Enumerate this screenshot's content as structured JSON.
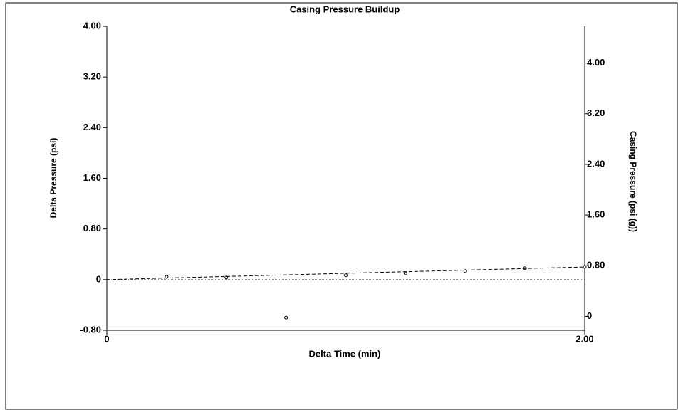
{
  "chart_data": {
    "type": "scatter",
    "title": "Casing Pressure Buildup",
    "x_label": "Delta Time (min)",
    "y_label": "Delta Pressure (psi)",
    "y2_label": "Casing Pressure (psi (g))",
    "xlim": [
      0,
      2
    ],
    "xticks": [
      0,
      {
        "value": 2,
        "label": "2.00"
      }
    ],
    "ylim": [
      -0.8,
      4
    ],
    "yticks": [
      {
        "value": 4,
        "label": "4.00"
      },
      {
        "value": 3.2,
        "label": "3.20"
      },
      {
        "value": 2.4,
        "label": "2.40"
      },
      {
        "value": 1.6,
        "label": "1.60"
      },
      {
        "value": 0.8,
        "label": "0.80"
      },
      0,
      {
        "value": -0.8,
        "label": "-0.80"
      }
    ],
    "y2lim": [
      -0.22,
      4.58
    ],
    "y2ticks": [
      {
        "value": 4,
        "label": "4.00"
      },
      {
        "value": 3.2,
        "label": "3.20"
      },
      {
        "value": 2.4,
        "label": "2.40"
      },
      {
        "value": 1.6,
        "label": "1.60"
      },
      {
        "value": 0.8,
        "label": "0.80"
      },
      0
    ],
    "zero_line": true,
    "series": [
      {
        "type": "scatter",
        "color": "#000000",
        "x": [
          0.25,
          0.5,
          0.75,
          1.0,
          1.25,
          1.5,
          1.75,
          2.0
        ],
        "values": [
          0.045,
          0.034,
          -0.6,
          0.068,
          0.1,
          0.135,
          0.18,
          0.2
        ]
      },
      {
        "type": "line",
        "style": "dashed",
        "color": "#000000",
        "x": [
          0,
          2
        ],
        "values": [
          0,
          0.2
        ]
      }
    ]
  }
}
